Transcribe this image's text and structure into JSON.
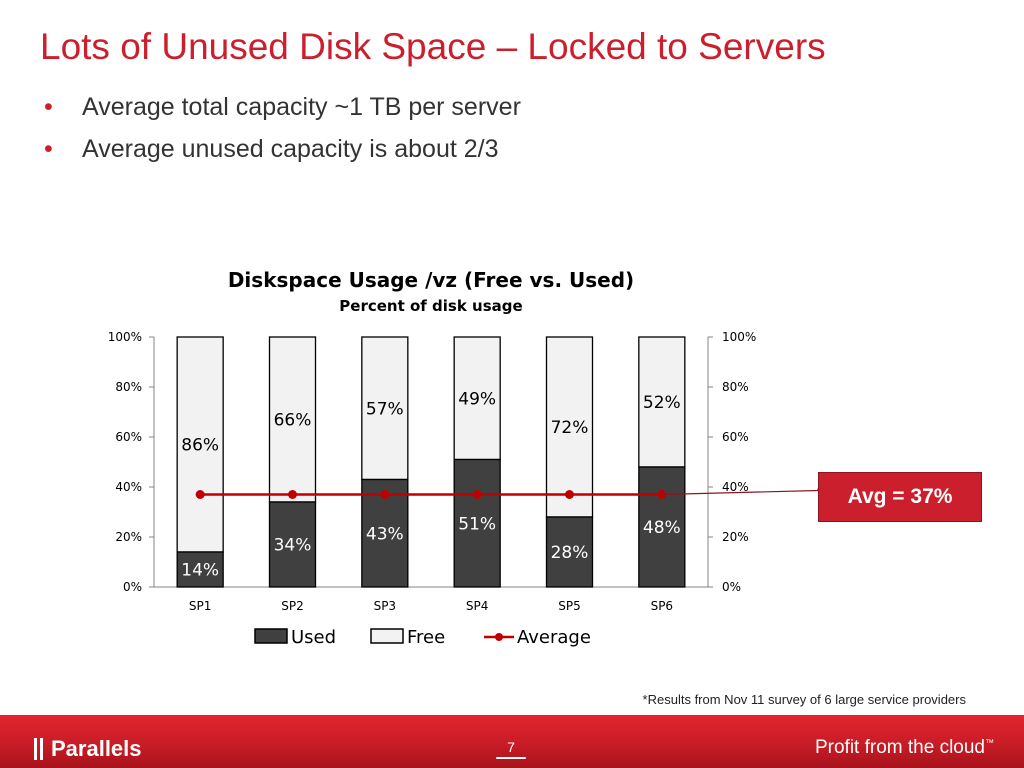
{
  "slide": {
    "title": "Lots of Unused Disk Space – Locked to Servers",
    "bullets": [
      "Average total capacity ~1 TB per server",
      "Average unused capacity is about 2/3"
    ],
    "bullet_symbol": "•",
    "callout": "Avg = 37%",
    "footnote": "*Results from Nov 11 survey of 6 large service providers",
    "page_number": "7",
    "logo_text": "Parallels",
    "tagline": "Profit from the cloud",
    "tagline_mark": "™"
  },
  "colors": {
    "accent": "#cc1f2d",
    "used": "#404040",
    "free": "#f2f2f2",
    "average_line": "#c00000"
  },
  "chart_data": {
    "type": "bar",
    "stacked": true,
    "title": "Diskspace Usage /vz (Free vs. Used)",
    "subtitle": "Percent of disk usage",
    "categories": [
      "SP1",
      "SP2",
      "SP3",
      "SP4",
      "SP5",
      "SP6"
    ],
    "series": [
      {
        "name": "Used",
        "values": [
          14,
          34,
          43,
          51,
          28,
          48
        ],
        "labels": [
          "14%",
          "34%",
          "43%",
          "51%",
          "28%",
          "48%"
        ]
      },
      {
        "name": "Free",
        "values": [
          86,
          66,
          57,
          49,
          72,
          52
        ],
        "labels": [
          "86%",
          "66%",
          "57%",
          "49%",
          "72%",
          "52%"
        ]
      },
      {
        "name": "Average",
        "type": "line",
        "values": [
          37,
          37,
          37,
          37,
          37,
          37
        ]
      }
    ],
    "ylim": [
      0,
      100
    ],
    "yticks": [
      "0%",
      "20%",
      "40%",
      "60%",
      "80%",
      "100%"
    ],
    "secondary_yticks": [
      "0%",
      "20%",
      "40%",
      "60%",
      "80%",
      "100%"
    ],
    "grid": false,
    "legend": "bottom"
  }
}
